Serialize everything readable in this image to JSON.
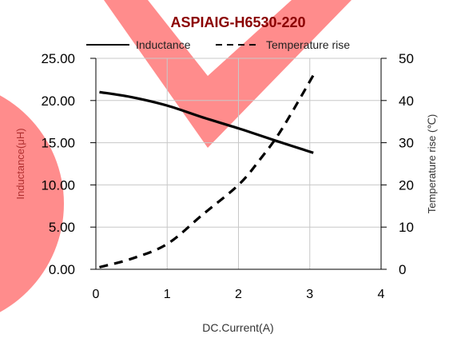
{
  "chart_data": {
    "type": "line",
    "title": "ASPIAIG-H6530-220",
    "xlabel": "DC.Current(A)",
    "ylabel_left": "Inductance(μH)",
    "ylabel_right": "Temperature rise (℃)",
    "xlim": [
      0,
      4
    ],
    "ylim_left": [
      0,
      25
    ],
    "ylim_right": [
      0,
      50
    ],
    "x_ticks": [
      "0",
      "1",
      "2",
      "3",
      "4"
    ],
    "y_left_ticks": [
      "0.00",
      "5.00",
      "10.00",
      "15.00",
      "20.00",
      "25.00"
    ],
    "y_right_ticks": [
      "0",
      "10",
      "20",
      "30",
      "40",
      "50"
    ],
    "grid": true,
    "legend_position": "top",
    "series": [
      {
        "name": "Inductance",
        "axis": "left",
        "style": "solid",
        "color": "#000000",
        "x": [
          0.05,
          0.5,
          1.0,
          1.5,
          2.0,
          2.5,
          3.05
        ],
        "y": [
          21.0,
          20.4,
          19.4,
          18.0,
          16.7,
          15.3,
          13.8
        ]
      },
      {
        "name": "Temperature rise",
        "axis": "right",
        "style": "dashed",
        "color": "#000000",
        "x": [
          0.05,
          0.5,
          1.0,
          1.5,
          2.0,
          2.3,
          2.6,
          3.05
        ],
        "y": [
          0.5,
          2.5,
          6.0,
          13.0,
          20.0,
          26.0,
          33.0,
          46.0
        ]
      }
    ]
  },
  "decor_colors": {
    "overlay": "#ff5f5f",
    "title": "#8b0000",
    "axis_label": "#b03030"
  }
}
